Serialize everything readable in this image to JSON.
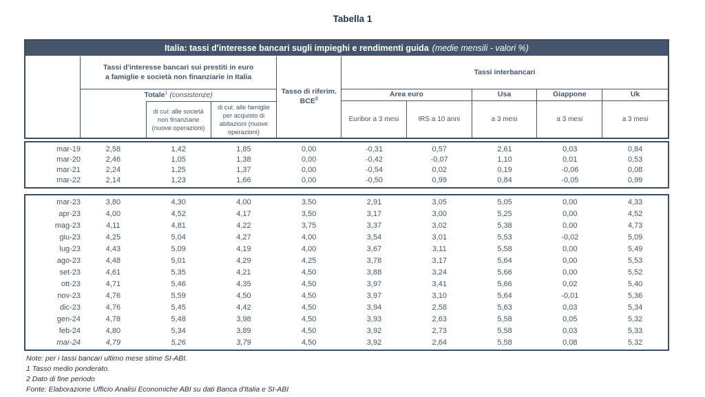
{
  "page_title": "Tabella 1",
  "colors": {
    "accent": "#44546A",
    "title_bar_bg": "#44546A",
    "title_bar_text": "#FFFFFF"
  },
  "table": {
    "title_bold": "Italia: tassi d'interesse bancari sugli impieghi e rendimenti guida",
    "title_italic": "(medie mensili - valori %)",
    "header": {
      "loans_group": "Tassi d'interesse bancari sui prestiti in euro a famiglie e società non finanziarie in Italia",
      "totale_label": "Totale",
      "totale_sup": "1",
      "totale_note": "(consistenze)",
      "di_cui_societa": "di cui: alle società non finanziarie (nuove operazioni)",
      "di_cui_famiglie": "di cui: alle famiglie per acquisto di abitazioni (nuove operazioni)",
      "bce_line1": "Tasso di riferim.",
      "bce_label": "BCE",
      "bce_sup": "2",
      "interbank_group": "Tassi interbancari",
      "area_euro": "Area euro",
      "usa": "Usa",
      "giappone": "Giappone",
      "uk": "Uk",
      "euribor": "Euribor a 3 mesi",
      "irs": "IRS a 10 anni",
      "a_3_mesi": "a 3 mesi"
    },
    "block1_rows": [
      {
        "d": "mar-19",
        "v": [
          "2,58",
          "1,42",
          "1,85",
          "0,00",
          "-0,31",
          "0,57",
          "2,61",
          "0,03",
          "0,84"
        ]
      },
      {
        "d": "mar-20",
        "v": [
          "2,46",
          "1,05",
          "1,38",
          "0,00",
          "-0,42",
          "-0,07",
          "1,10",
          "0,01",
          "0,53"
        ]
      },
      {
        "d": "mar-21",
        "v": [
          "2,24",
          "1,25",
          "1,37",
          "0,00",
          "-0,54",
          "0,02",
          "0,19",
          "-0,06",
          "0,08"
        ]
      },
      {
        "d": "mar-22",
        "v": [
          "2,14",
          "1,23",
          "1,66",
          "0,00",
          "-0,50",
          "0,99",
          "0,84",
          "-0,05",
          "0,99"
        ]
      }
    ],
    "block2_rows": [
      {
        "d": "mar-23",
        "v": [
          "3,80",
          "4,30",
          "4,00",
          "3,50",
          "2,91",
          "3,05",
          "5,05",
          "0,00",
          "4,33"
        ]
      },
      {
        "d": "apr-23",
        "v": [
          "4,00",
          "4,52",
          "4,17",
          "3,50",
          "3,17",
          "3,00",
          "5,25",
          "0,00",
          "4,52"
        ]
      },
      {
        "d": "mag-23",
        "v": [
          "4,11",
          "4,81",
          "4,22",
          "3,75",
          "3,37",
          "3,02",
          "5,38",
          "0,00",
          "4,73"
        ]
      },
      {
        "d": "giu-23",
        "v": [
          "4,25",
          "5,04",
          "4,27",
          "4,00",
          "3,54",
          "3,01",
          "5,53",
          "-0,02",
          "5,09"
        ]
      },
      {
        "d": "lug-23",
        "v": [
          "4,43",
          "5,09",
          "4,19",
          "4,00",
          "3,67",
          "3,11",
          "5,58",
          "0,00",
          "5,49"
        ]
      },
      {
        "d": "ago-23",
        "v": [
          "4,48",
          "5,01",
          "4,29",
          "4,25",
          "3,78",
          "3,17",
          "5,64",
          "0,00",
          "5,53"
        ]
      },
      {
        "d": "set-23",
        "v": [
          "4,61",
          "5,35",
          "4,21",
          "4,50",
          "3,88",
          "3,24",
          "5,66",
          "0,00",
          "5,52"
        ]
      },
      {
        "d": "ott-23",
        "v": [
          "4,71",
          "5,46",
          "4,35",
          "4,50",
          "3,97",
          "3,41",
          "5,66",
          "0,02",
          "5,40"
        ]
      },
      {
        "d": "nov-23",
        "v": [
          "4,76",
          "5,59",
          "4,50",
          "4,50",
          "3,97",
          "3,10",
          "5,64",
          "-0,01",
          "5,36"
        ]
      },
      {
        "d": "dic-23",
        "v": [
          "4,76",
          "5,45",
          "4,42",
          "4,50",
          "3,94",
          "2,58",
          "5,63",
          "0,03",
          "5,34"
        ]
      },
      {
        "d": "gen-24",
        "v": [
          "4,78",
          "5,48",
          "3,98",
          "4,50",
          "3,93",
          "2,63",
          "5,58",
          "0,05",
          "5,32"
        ]
      },
      {
        "d": "feb-24",
        "v": [
          "4,80",
          "5,34",
          "3,89",
          "4,50",
          "3,92",
          "2,73",
          "5,58",
          "0,03",
          "5,33"
        ]
      },
      {
        "d": "mar-24",
        "est": true,
        "v": [
          "4,79",
          "5,26",
          "3,79",
          "4,50",
          "3,92",
          "2,64",
          "5,58",
          "0,08",
          "5,32"
        ]
      }
    ]
  },
  "notes": [
    "Note: per i tassi bancari ultimo mese stime SI-ABI.",
    "1 Tasso medio ponderato.",
    "2 Dato di fine periodo",
    "Fonte: Elaborazione Ufficio Analisi Economiche ABI su dati Banca d'Italia e SI-ABI"
  ]
}
